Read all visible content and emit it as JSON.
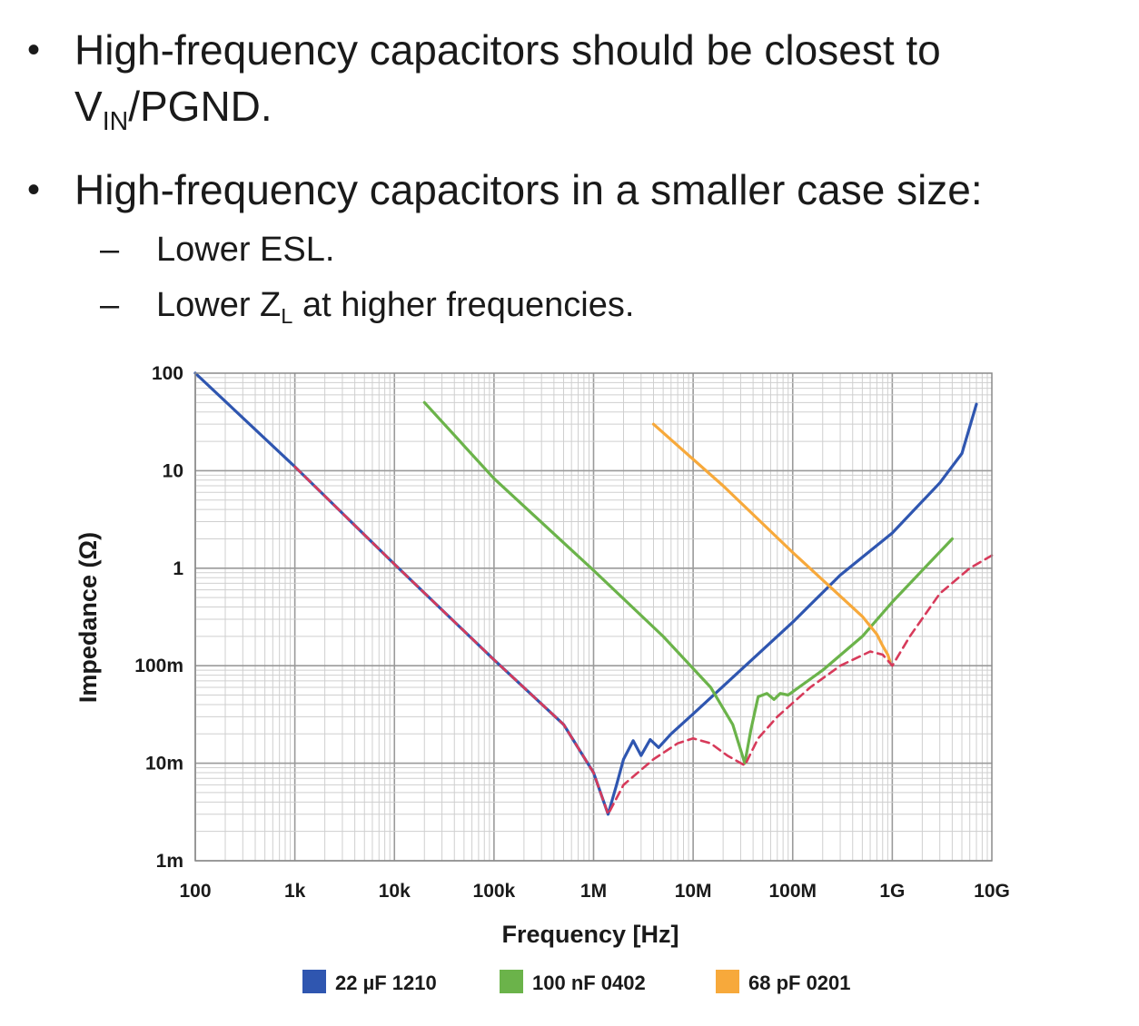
{
  "bullets": {
    "b1_text": "High-frequency capacitors should be closest to",
    "b1_v": "V",
    "b1_sub": "IN",
    "b1_rest": "/PGND.",
    "b2_text": "High-frequency capacitors in a smaller case size:",
    "s1_text": "Lower ESL.",
    "s2_pre": "Lower Z",
    "s2_sub": "L",
    "s2_post": " at higher frequencies.",
    "bullet_char": "•",
    "dash_char": "–"
  },
  "chart_data": {
    "type": "line",
    "xlabel": "Frequency [Hz]",
    "ylabel": "Impedance (Ω)",
    "x_scale": "log",
    "y_scale": "log",
    "xlim": [
      100,
      10000000000
    ],
    "ylim": [
      0.001,
      100
    ],
    "grid": true,
    "legend_position": "bottom",
    "x_ticks": [
      {
        "value": 100,
        "label": "100"
      },
      {
        "value": 1000,
        "label": "1k"
      },
      {
        "value": 10000,
        "label": "10k"
      },
      {
        "value": 100000,
        "label": "100k"
      },
      {
        "value": 1000000,
        "label": "1M"
      },
      {
        "value": 10000000,
        "label": "10M"
      },
      {
        "value": 100000000,
        "label": "100M"
      },
      {
        "value": 1000000000,
        "label": "1G"
      },
      {
        "value": 10000000000,
        "label": "10G"
      }
    ],
    "y_ticks": [
      {
        "value": 0.001,
        "label": "1m"
      },
      {
        "value": 0.01,
        "label": "10m"
      },
      {
        "value": 0.1,
        "label": "100m"
      },
      {
        "value": 1,
        "label": "1"
      },
      {
        "value": 10,
        "label": "10"
      },
      {
        "value": 100,
        "label": "100"
      }
    ],
    "series": [
      {
        "name": "22 µF 1210",
        "color": "#2f56b0",
        "style": "solid",
        "points": [
          [
            100,
            100
          ],
          [
            1000,
            11
          ],
          [
            10000,
            1.1
          ],
          [
            100000,
            0.115
          ],
          [
            500000,
            0.025
          ],
          [
            1000000,
            0.008
          ],
          [
            1400000,
            0.003
          ],
          [
            1700000,
            0.006
          ],
          [
            2000000,
            0.011
          ],
          [
            2500000,
            0.017
          ],
          [
            3000000,
            0.012
          ],
          [
            3700000,
            0.0175
          ],
          [
            4500000,
            0.0145
          ],
          [
            6000000,
            0.02
          ],
          [
            10000000,
            0.032
          ],
          [
            30000000,
            0.09
          ],
          [
            100000000,
            0.28
          ],
          [
            300000000,
            0.85
          ],
          [
            1000000000,
            2.3
          ],
          [
            3000000000,
            7.5
          ],
          [
            5000000000,
            15
          ],
          [
            7000000000,
            48
          ]
        ]
      },
      {
        "name": "100 nF 0402",
        "color": "#6bb34a",
        "style": "solid",
        "points": [
          [
            20000,
            50
          ],
          [
            100000,
            8.3
          ],
          [
            1000000,
            0.95
          ],
          [
            5000000,
            0.2
          ],
          [
            15000000,
            0.06
          ],
          [
            25000000,
            0.025
          ],
          [
            33000000,
            0.01
          ],
          [
            38000000,
            0.022
          ],
          [
            45000000,
            0.048
          ],
          [
            55000000,
            0.052
          ],
          [
            65000000,
            0.045
          ],
          [
            75000000,
            0.052
          ],
          [
            90000000,
            0.05
          ],
          [
            200000000,
            0.09
          ],
          [
            500000000,
            0.2
          ],
          [
            1000000000,
            0.45
          ],
          [
            2000000000,
            0.95
          ],
          [
            4000000000,
            2
          ]
        ]
      },
      {
        "name": "68 pF 0201",
        "color": "#f7a93b",
        "style": "solid",
        "points": [
          [
            4000000,
            30
          ],
          [
            20000000,
            7
          ],
          [
            100000000,
            1.45
          ],
          [
            500000000,
            0.32
          ],
          [
            700000000,
            0.21
          ],
          [
            800000000,
            0.16
          ],
          [
            900000000,
            0.13
          ],
          [
            950000000,
            0.11
          ]
        ]
      },
      {
        "name": "",
        "color": "#d73a5a",
        "style": "dashed",
        "points": [
          [
            1000,
            11
          ],
          [
            10000,
            1.1
          ],
          [
            100000,
            0.115
          ],
          [
            500000,
            0.025
          ],
          [
            1000000,
            0.008
          ],
          [
            1400000,
            0.003
          ],
          [
            2000000,
            0.006
          ],
          [
            4000000,
            0.011
          ],
          [
            7000000,
            0.016
          ],
          [
            10000000,
            0.018
          ],
          [
            15000000,
            0.016
          ],
          [
            22000000,
            0.012
          ],
          [
            33000000,
            0.0095
          ],
          [
            45000000,
            0.018
          ],
          [
            70000000,
            0.03
          ],
          [
            150000000,
            0.06
          ],
          [
            300000000,
            0.1
          ],
          [
            600000000,
            0.14
          ],
          [
            800000000,
            0.13
          ],
          [
            1000000000,
            0.1
          ],
          [
            1500000000,
            0.2
          ],
          [
            3000000000,
            0.55
          ],
          [
            6000000000,
            1.0
          ],
          [
            10000000000,
            1.35
          ]
        ]
      }
    ]
  }
}
